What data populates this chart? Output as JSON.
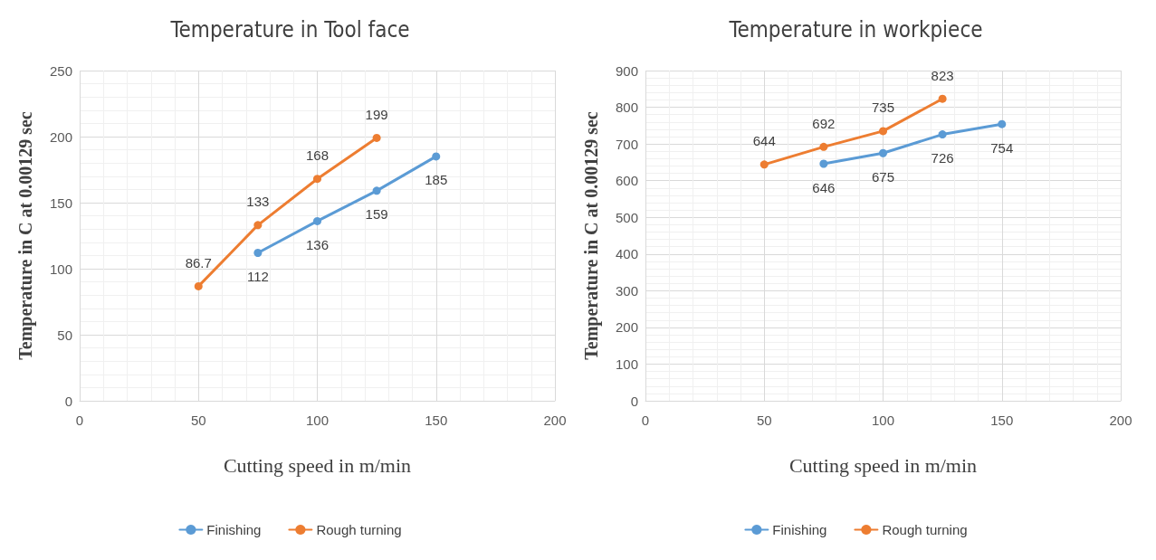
{
  "chart_data": [
    {
      "type": "line",
      "title": "Temperature in Tool face",
      "xlabel": "Cutting speed in m/min",
      "ylabel": "Temperature in C at 0.00129 sec",
      "xlim": [
        0,
        200
      ],
      "xticks": [
        0,
        50,
        100,
        150,
        200
      ],
      "ylim": [
        0,
        250
      ],
      "yticks": [
        0,
        50,
        100,
        150,
        200,
        250
      ],
      "grid": true,
      "legend": "bottom",
      "marker": "circle",
      "data_labels": true,
      "series": [
        {
          "name": "Finishing",
          "color": "#5b9bd5",
          "x": [
            75,
            100,
            125,
            150
          ],
          "values": [
            112,
            136,
            159,
            185
          ]
        },
        {
          "name": "Rough turning",
          "color": "#ed7d31",
          "x": [
            50,
            75,
            100,
            125
          ],
          "values": [
            86.7,
            133,
            168,
            199
          ]
        }
      ]
    },
    {
      "type": "line",
      "title": "Temperature in workpiece",
      "xlabel": "Cutting speed in m/min",
      "ylabel": "Temperature in C at 0.00129 sec",
      "xlim": [
        0,
        200
      ],
      "xticks": [
        0,
        50,
        100,
        150,
        200
      ],
      "ylim": [
        0,
        900
      ],
      "yticks": [
        0,
        100,
        200,
        300,
        400,
        500,
        600,
        700,
        800,
        900
      ],
      "grid": true,
      "legend": "bottom",
      "marker": "circle",
      "data_labels": true,
      "series": [
        {
          "name": "Finishing",
          "color": "#5b9bd5",
          "x": [
            75,
            100,
            125,
            150
          ],
          "values": [
            646,
            675,
            726,
            754
          ]
        },
        {
          "name": "Rough turning",
          "color": "#ed7d31",
          "x": [
            50,
            75,
            100,
            125
          ],
          "values": [
            644,
            692,
            735,
            823
          ]
        }
      ]
    }
  ]
}
